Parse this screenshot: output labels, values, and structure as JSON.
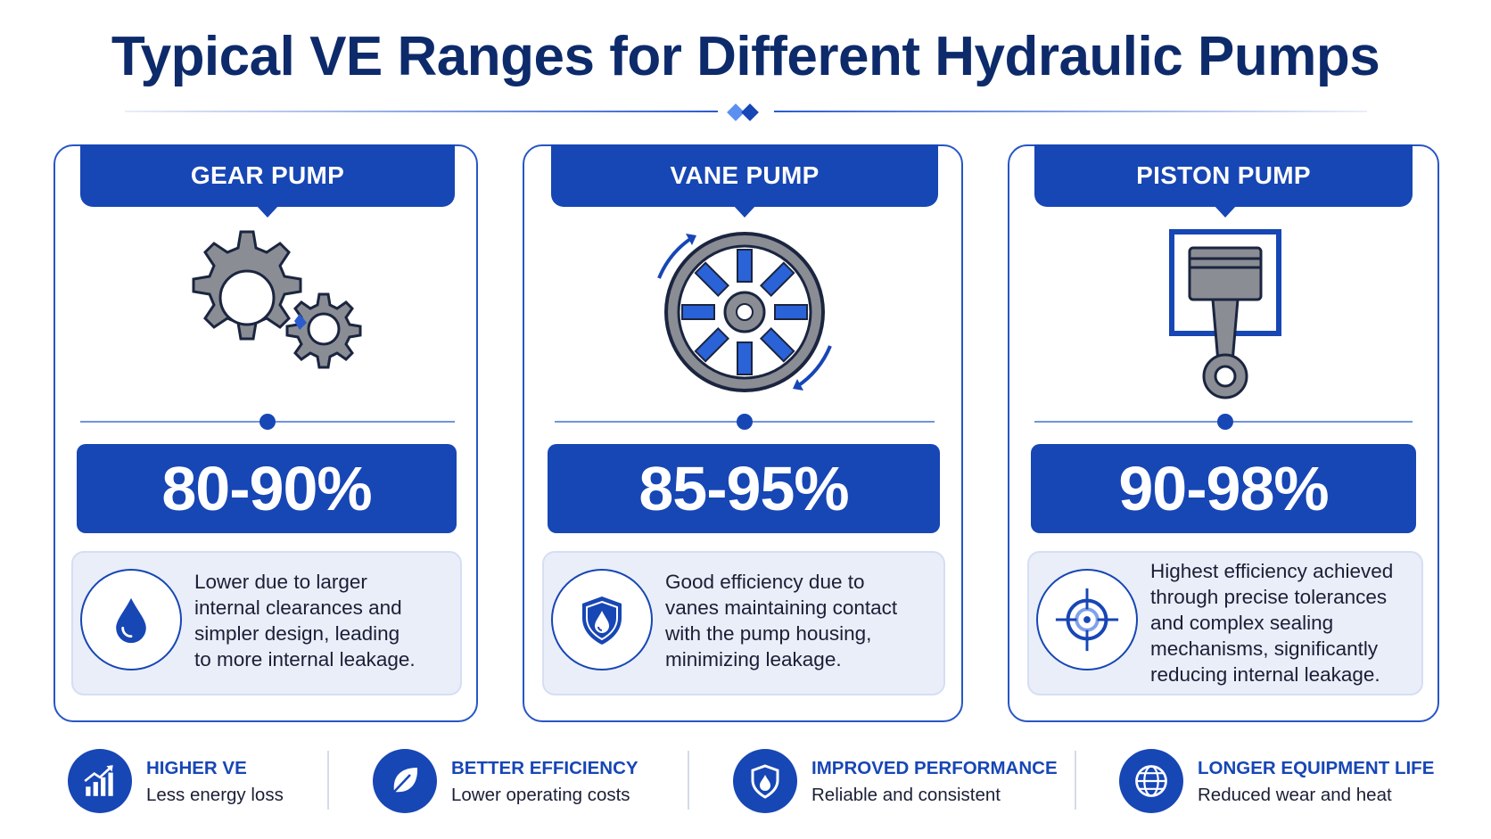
{
  "title": "Typical VE Ranges for Different Hydraulic Pumps",
  "colors": {
    "primary": "#1746b5",
    "title": "#0d2a6b",
    "panel": "#e9eef9",
    "gear_gray": "#8a8d93"
  },
  "pumps": [
    {
      "name": "GEAR PUMP",
      "icon": "gears-icon",
      "range": "80-90%",
      "desc_icon": "droplet-icon",
      "desc_lines": [
        "Lower due to larger",
        "internal clearances and",
        "simpler design, leading",
        "to more internal leakage."
      ]
    },
    {
      "name": "VANE PUMP",
      "icon": "vane-rotor-icon",
      "range": "85-95%",
      "desc_icon": "shield-droplet-icon",
      "desc_lines": [
        "Good efficiency due to",
        "vanes maintaining contact",
        "with the pump housing,",
        "minimizing leakage."
      ]
    },
    {
      "name": "PISTON PUMP",
      "icon": "piston-icon",
      "range": "90-98%",
      "desc_icon": "crosshair-icon",
      "desc_lines": [
        "Highest efficiency achieved",
        "through precise tolerances",
        "and complex sealing",
        "mechanisms, significantly",
        "reducing internal leakage."
      ]
    }
  ],
  "benefits": [
    {
      "title": "HIGHER VE",
      "sub": "Less energy loss",
      "icon": "bar-chart-up-icon"
    },
    {
      "title": "BETTER EFFICIENCY",
      "sub": "Lower operating costs",
      "icon": "leaf-icon"
    },
    {
      "title": "IMPROVED PERFORMANCE",
      "sub": "Reliable and consistent",
      "icon": "shield-drop-icon"
    },
    {
      "title": "LONGER EQUIPMENT LIFE",
      "sub": "Reduced wear and heat",
      "icon": "globe-icon"
    }
  ]
}
